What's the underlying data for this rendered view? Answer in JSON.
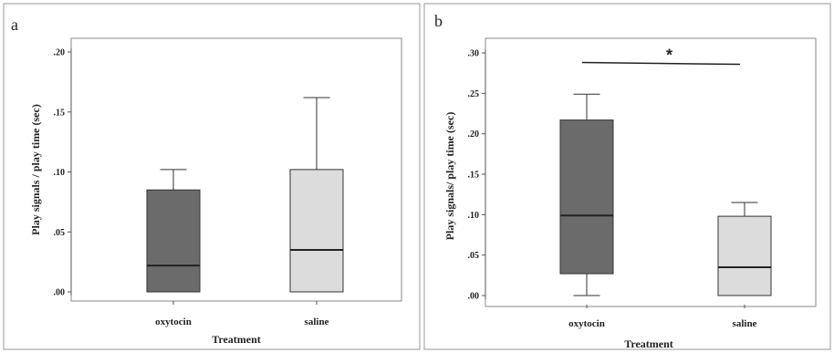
{
  "chart_data": [
    {
      "type": "box",
      "panel_label": "a",
      "xlabel": "Treatment",
      "ylabel": "Play signals / play time (sec)",
      "ylim": [
        0,
        0.2
      ],
      "yticks": [
        0,
        0.05,
        0.1,
        0.15,
        0.2
      ],
      "ytick_labels": [
        ".00",
        ".05",
        ".10",
        ".15",
        ".20"
      ],
      "categories": [
        "oxytocin",
        "saline"
      ],
      "boxes": [
        {
          "category": "oxytocin",
          "min": 0.0,
          "q1": 0.0,
          "median": 0.022,
          "q3": 0.085,
          "max": 0.102,
          "color": "#6b6b6b"
        },
        {
          "category": "saline",
          "min": 0.0,
          "q1": 0.0,
          "median": 0.035,
          "q3": 0.102,
          "max": 0.162,
          "color": "#dcdcdc"
        }
      ],
      "significance": null
    },
    {
      "type": "box",
      "panel_label": "b",
      "xlabel": "Treatment",
      "ylabel": "Play signals/ play time (sec)",
      "ylim": [
        0,
        0.3
      ],
      "yticks": [
        0,
        0.05,
        0.1,
        0.15,
        0.2,
        0.25,
        0.3
      ],
      "ytick_labels": [
        ".00",
        ".05",
        ".10",
        ".15",
        ".20",
        ".25",
        ".30"
      ],
      "categories": [
        "oxytocin",
        "saline"
      ],
      "boxes": [
        {
          "category": "oxytocin",
          "min": 0.0,
          "q1": 0.027,
          "median": 0.099,
          "q3": 0.217,
          "max": 0.249,
          "color": "#6b6b6b"
        },
        {
          "category": "saline",
          "min": 0.0,
          "q1": 0.0,
          "median": 0.035,
          "q3": 0.098,
          "max": 0.115,
          "color": "#dcdcdc"
        }
      ],
      "significance": {
        "symbol": "*",
        "y": 0.287,
        "from": "oxytocin",
        "to": "saline"
      }
    }
  ]
}
